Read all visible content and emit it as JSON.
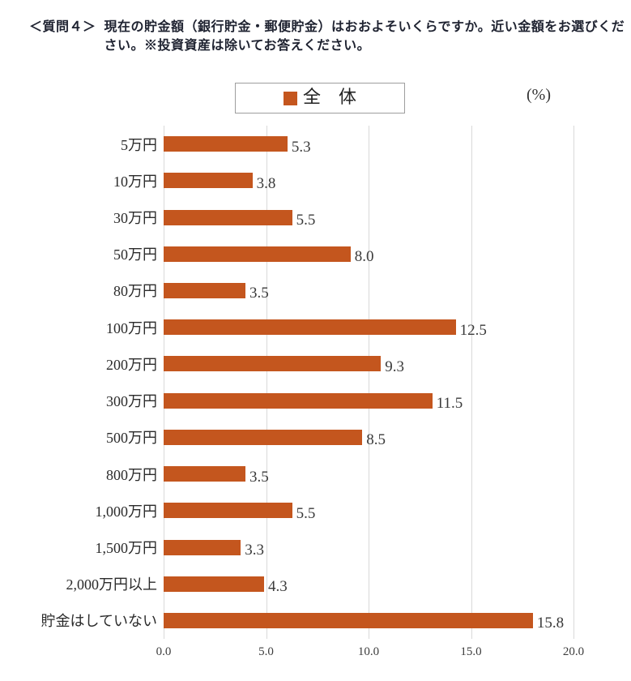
{
  "header": {
    "prefix": "＜質問４＞",
    "line1": "現在の貯金額（銀行貯金・郵便貯金）はおおよそいくらですか。近い金額をお選びくだ",
    "line2": "さい。※投資資産は除いてお答えください。"
  },
  "legend": {
    "label": "全　体",
    "swatch_color": "#C4561E",
    "unit": "(%)"
  },
  "chart_data": {
    "type": "bar",
    "orientation": "horizontal",
    "title": "",
    "categories": [
      "5万円",
      "10万円",
      "30万円",
      "50万円",
      "80万円",
      "100万円",
      "200万円",
      "300万円",
      "500万円",
      "800万円",
      "1,000万円",
      "1,500万円",
      "2,000万円以上",
      "貯金はしていない"
    ],
    "values": [
      5.3,
      3.8,
      5.5,
      8.0,
      3.5,
      12.5,
      9.3,
      11.5,
      8.5,
      3.5,
      5.5,
      3.3,
      4.3,
      15.8
    ],
    "xlabel": "(%)",
    "ylabel": "",
    "xlim": [
      0,
      20
    ],
    "xticks": [
      "0.0",
      "5.0",
      "10.0",
      "15.0",
      "20.0"
    ],
    "grid": true,
    "gridline_color": "#d9d9d9",
    "bar_color": "#C4561E",
    "legend_entries": [
      "全　体"
    ],
    "legend_position": "top-center",
    "value_labels": true
  }
}
